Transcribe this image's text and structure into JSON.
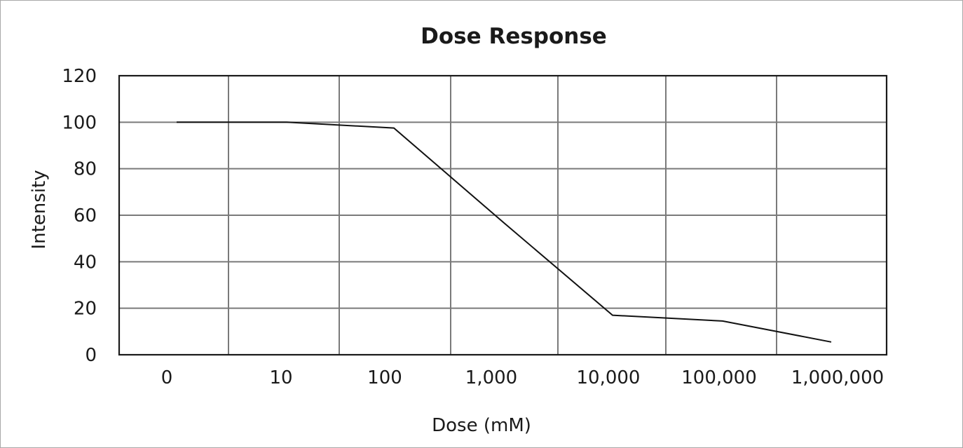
{
  "chart_data": {
    "type": "line",
    "title": "Dose Response",
    "xlabel": "Dose (mM)",
    "ylabel": "Intensity",
    "categories": [
      "0",
      "10",
      "100",
      "1,000",
      "10,000",
      "100,000",
      "1,000,000"
    ],
    "series": [
      {
        "values": [
          100,
          100,
          97.5,
          57,
          17,
          14.5,
          5.5
        ]
      }
    ],
    "yticks": [
      "0",
      "20",
      "40",
      "60",
      "80",
      "100",
      "120"
    ],
    "ylim": [
      0,
      120
    ],
    "grid": true,
    "legend": "none",
    "colors": {
      "line": "#111111",
      "grid": "#7a7a7a",
      "frame": "#1a1a1a"
    }
  }
}
